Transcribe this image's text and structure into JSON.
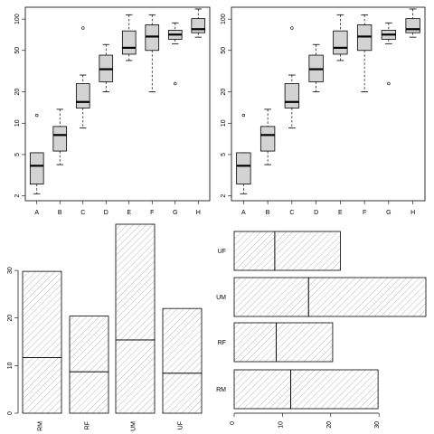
{
  "chart_data": [
    {
      "type": "box",
      "scale": "log",
      "categories": [
        "A",
        "B",
        "C",
        "D",
        "E",
        "F",
        "G",
        "H"
      ],
      "yticks": [
        2,
        5,
        10,
        20,
        50,
        100
      ],
      "ylim": [
        1.8,
        130
      ],
      "series": [
        {
          "values": [
            {
              "min": 2.1,
              "q1": 2.6,
              "median": 3.9,
              "q3": 5.2,
              "max": 5.2,
              "outliers": [
                11.9
              ]
            },
            {
              "min": 4.0,
              "q1": 5.4,
              "median": 7.7,
              "q3": 9.3,
              "max": 13.6,
              "outliers": []
            },
            {
              "min": 9.0,
              "q1": 14.0,
              "median": 16.0,
              "q3": 24.0,
              "max": 29.0,
              "outliers": [
                82
              ]
            },
            {
              "min": 20.0,
              "q1": 25.0,
              "median": 33.0,
              "q3": 45.0,
              "max": 57.0,
              "outliers": []
            },
            {
              "min": 40.0,
              "q1": 46.0,
              "median": 53.0,
              "q3": 77.0,
              "max": 110.0,
              "outliers": []
            },
            {
              "min": 20.0,
              "q1": 50.0,
              "median": 68.0,
              "q3": 88.0,
              "max": 110.0,
              "outliers": []
            },
            {
              "min": 58.0,
              "q1": 64.0,
              "median": 71.0,
              "q3": 78.0,
              "max": 92.0,
              "outliers": [
                24
              ]
            },
            {
              "min": 67.0,
              "q1": 74.0,
              "median": 80.0,
              "q3": 101.0,
              "max": 125.0,
              "outliers": []
            }
          ]
        }
      ]
    },
    {
      "type": "box",
      "scale": "log",
      "categories": [
        "A",
        "B",
        "C",
        "D",
        "E",
        "F",
        "G",
        "H"
      ],
      "yticks": [
        2,
        5,
        10,
        20,
        50,
        100
      ],
      "ylim": [
        1.8,
        130
      ],
      "series": [
        {
          "values": [
            {
              "min": 2.1,
              "q1": 2.6,
              "median": 3.9,
              "q3": 5.2,
              "max": 5.2,
              "outliers": [
                11.9
              ]
            },
            {
              "min": 4.0,
              "q1": 5.4,
              "median": 7.7,
              "q3": 9.3,
              "max": 13.6,
              "outliers": []
            },
            {
              "min": 9.0,
              "q1": 14.0,
              "median": 16.0,
              "q3": 24.0,
              "max": 29.0,
              "outliers": [
                82
              ]
            },
            {
              "min": 20.0,
              "q1": 25.0,
              "median": 33.0,
              "q3": 45.0,
              "max": 57.0,
              "outliers": []
            },
            {
              "min": 40.0,
              "q1": 46.0,
              "median": 53.0,
              "q3": 77.0,
              "max": 110.0,
              "outliers": []
            },
            {
              "min": 20.0,
              "q1": 50.0,
              "median": 68.0,
              "q3": 88.0,
              "max": 110.0,
              "outliers": []
            },
            {
              "min": 58.0,
              "q1": 64.0,
              "median": 71.0,
              "q3": 78.0,
              "max": 92.0,
              "outliers": [
                24
              ]
            },
            {
              "min": 67.0,
              "q1": 74.0,
              "median": 80.0,
              "q3": 101.0,
              "max": 125.0,
              "outliers": []
            }
          ]
        }
      ]
    },
    {
      "type": "bar",
      "orientation": "vertical",
      "stacked": true,
      "categories": [
        "RM",
        "RF",
        "UM",
        "UF"
      ],
      "series": [
        {
          "values": [
            11.7,
            8.7,
            15.4,
            8.4
          ]
        },
        {
          "values": [
            18.1,
            11.7,
            24.3,
            13.6
          ]
        }
      ],
      "ylim": [
        0,
        40
      ],
      "yticks": [
        0,
        10,
        20,
        30
      ],
      "fill": "hatched"
    },
    {
      "type": "bar",
      "orientation": "horizontal",
      "stacked": true,
      "categories": [
        "RM",
        "RF",
        "UM",
        "UF"
      ],
      "series": [
        {
          "values": [
            11.7,
            8.7,
            15.4,
            8.4
          ]
        },
        {
          "values": [
            18.1,
            11.7,
            24.3,
            13.6
          ]
        }
      ],
      "xlim": [
        0,
        40
      ],
      "xticks": [
        0,
        10,
        20,
        30
      ],
      "fill": "hatched"
    }
  ]
}
